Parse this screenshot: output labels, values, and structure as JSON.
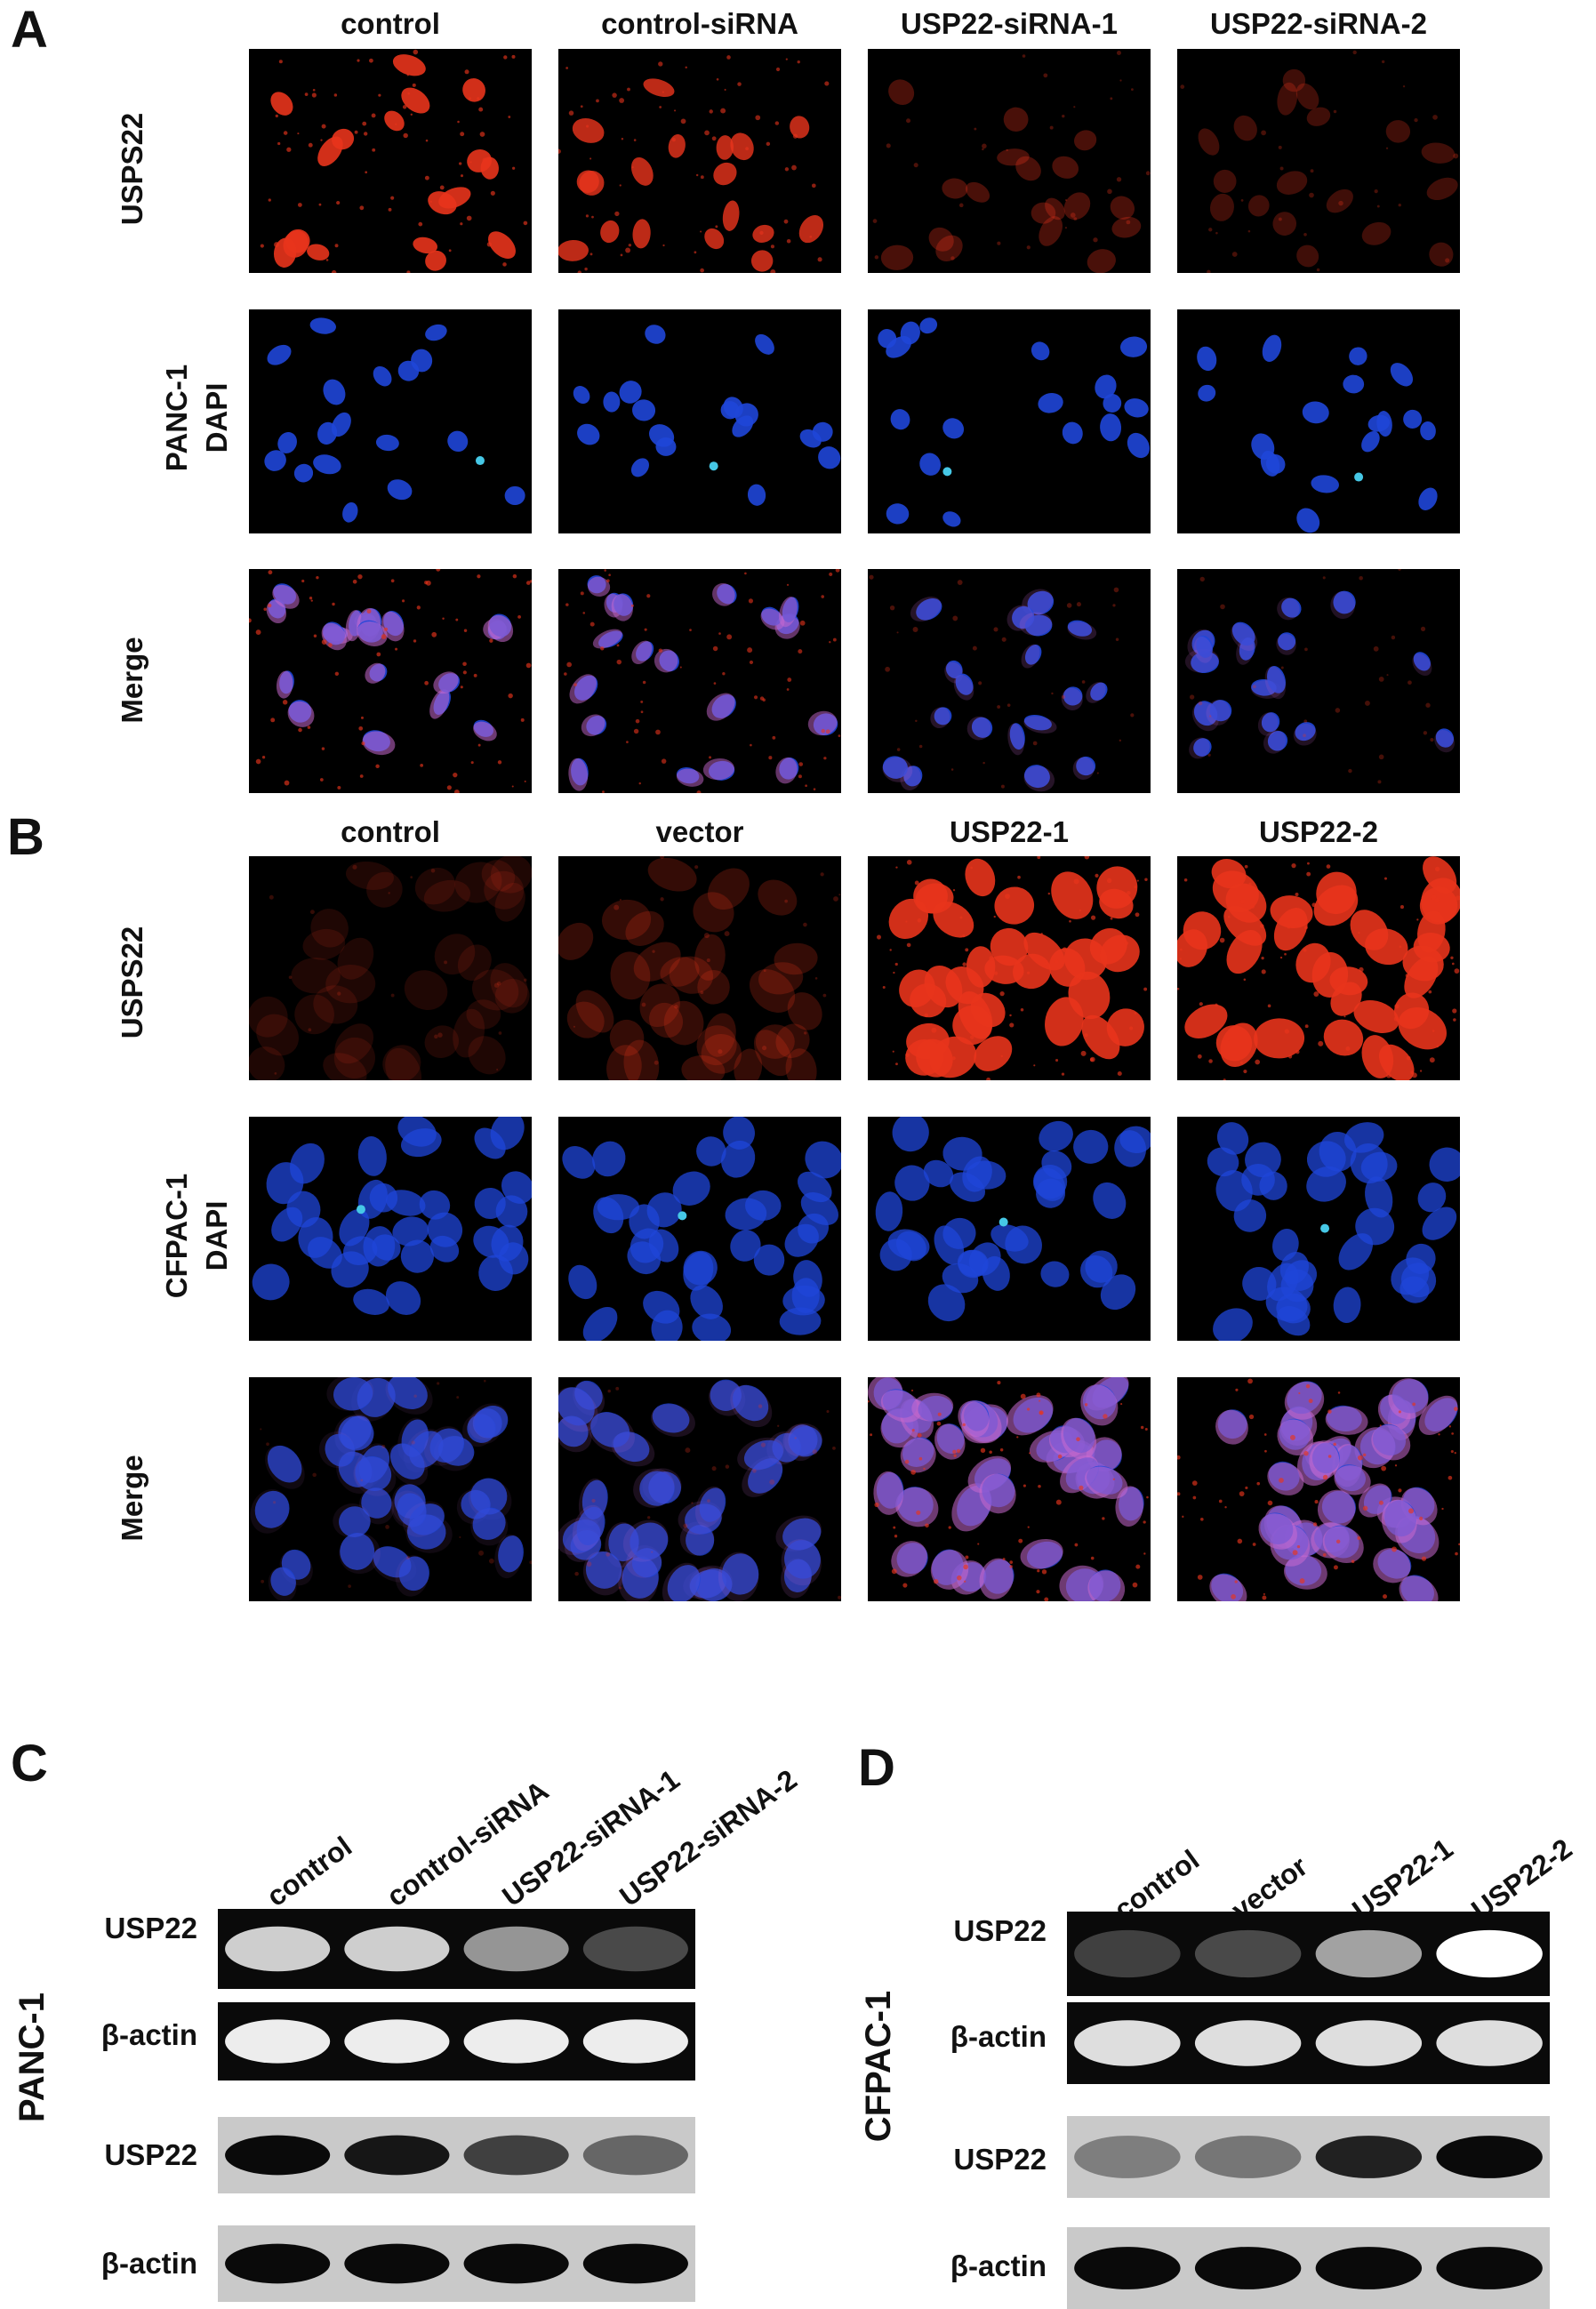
{
  "panel_a": {
    "letter": "A",
    "columns": [
      "control",
      "control-siRNA",
      "USP22-siRNA-1",
      "USP22-siRNA-2"
    ],
    "rows": [
      "USPS22",
      "PANC-1\nDAPI",
      "Merge"
    ],
    "row_line1": [
      "USPS22",
      "PANC-1",
      "Merge"
    ],
    "row_line2": [
      "",
      "DAPI",
      ""
    ],
    "usp22_intensity": [
      1.0,
      0.9,
      0.35,
      0.3
    ]
  },
  "panel_b": {
    "letter": "B",
    "columns": [
      "control",
      "vector",
      "USP22-1",
      "USP22-2"
    ],
    "row_line1": [
      "USPS22",
      "CFPAC-1",
      "Merge"
    ],
    "row_line2": [
      "",
      "DAPI",
      ""
    ],
    "usp22_intensity": [
      0.15,
      0.25,
      1.0,
      1.0
    ]
  },
  "panel_c": {
    "letter": "C",
    "side_label": "PANC-1",
    "lanes": [
      "control",
      "control-siRNA",
      "USP22-siRNA-1",
      "USP22-siRNA-2"
    ],
    "blots": [
      "USP22",
      "β-actin",
      "USP22",
      "β-actin"
    ],
    "usp22_rt_intensity": [
      0.85,
      0.85,
      0.65,
      0.3
    ],
    "usp22_wb_intensity": [
      1.0,
      0.95,
      0.75,
      0.55
    ]
  },
  "panel_d": {
    "letter": "D",
    "side_label": "CFPAC-1",
    "lanes": [
      "control",
      "vector",
      "USP22-1",
      "USP22-2"
    ],
    "blots": [
      "USP22",
      "β-actin",
      "USP22",
      "β-actin"
    ],
    "usp22_rt_intensity": [
      0.25,
      0.3,
      0.7,
      1.0
    ],
    "usp22_wb_intensity": [
      0.4,
      0.45,
      0.9,
      1.0
    ]
  },
  "colors": {
    "red": "#e8341c",
    "blue": "#1f46d8",
    "pink": "#c86ad0",
    "cyan": "#46c8e6"
  }
}
